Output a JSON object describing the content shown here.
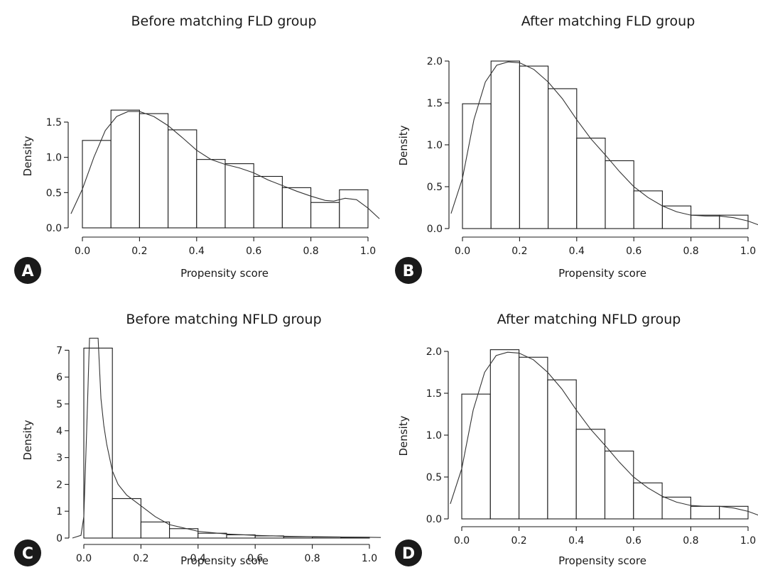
{
  "chart_data": [
    {
      "type": "bar",
      "panel_label": "A",
      "title": "Before matching FLD group",
      "xlabel": "Propensity score",
      "ylabel": "Density",
      "bin_edges": [
        0,
        0.1,
        0.2,
        0.3,
        0.4,
        0.5,
        0.6,
        0.7,
        0.8,
        0.9,
        1.0
      ],
      "values": [
        1.24,
        1.67,
        1.62,
        1.39,
        0.97,
        0.91,
        0.73,
        0.57,
        0.36,
        0.54
      ],
      "density_curve": {
        "x": [
          -0.04,
          0.0,
          0.04,
          0.08,
          0.12,
          0.16,
          0.2,
          0.25,
          0.3,
          0.35,
          0.4,
          0.45,
          0.5,
          0.55,
          0.6,
          0.65,
          0.7,
          0.75,
          0.8,
          0.85,
          0.88,
          0.92,
          0.96,
          1.0,
          1.04
        ],
        "y": [
          0.2,
          0.55,
          1.0,
          1.38,
          1.58,
          1.65,
          1.65,
          1.58,
          1.45,
          1.28,
          1.1,
          0.97,
          0.9,
          0.85,
          0.78,
          0.68,
          0.6,
          0.52,
          0.45,
          0.39,
          0.38,
          0.42,
          0.4,
          0.28,
          0.13
        ]
      },
      "xlim": [
        -0.04,
        1.04
      ],
      "ylim": [
        0,
        1.8
      ],
      "xticks": [
        0,
        0.2,
        0.4,
        0.6,
        0.8,
        1.0
      ],
      "xtick_labels": [
        "0.0",
        "0.2",
        "0.4",
        "0.6",
        "0.8",
        "1.0"
      ],
      "yticks": [
        0,
        0.5,
        1.0,
        1.5
      ],
      "ytick_labels": [
        "0.0",
        "0.5",
        "1.0",
        "1.5"
      ]
    },
    {
      "type": "bar",
      "panel_label": "B",
      "title": "After matching FLD group",
      "xlabel": "Propensity score",
      "ylabel": "Density",
      "bin_edges": [
        0,
        0.1,
        0.2,
        0.3,
        0.4,
        0.5,
        0.6,
        0.7,
        0.8,
        0.9,
        1.0
      ],
      "values": [
        1.49,
        2.0,
        1.94,
        1.67,
        1.08,
        0.81,
        0.45,
        0.27,
        0.16,
        0.16
      ],
      "density_curve": {
        "x": [
          -0.04,
          0.0,
          0.04,
          0.08,
          0.12,
          0.16,
          0.2,
          0.25,
          0.3,
          0.35,
          0.4,
          0.45,
          0.5,
          0.55,
          0.6,
          0.65,
          0.7,
          0.75,
          0.8,
          0.85,
          0.9,
          0.95,
          1.0,
          1.04
        ],
        "y": [
          0.18,
          0.6,
          1.3,
          1.75,
          1.95,
          1.99,
          1.98,
          1.9,
          1.75,
          1.55,
          1.3,
          1.07,
          0.88,
          0.68,
          0.5,
          0.37,
          0.27,
          0.2,
          0.16,
          0.15,
          0.15,
          0.13,
          0.09,
          0.04
        ]
      },
      "xlim": [
        -0.04,
        1.04
      ],
      "ylim": [
        0,
        2.15
      ],
      "xticks": [
        0,
        0.2,
        0.4,
        0.6,
        0.8,
        1.0
      ],
      "xtick_labels": [
        "0.0",
        "0.2",
        "0.4",
        "0.6",
        "0.8",
        "1.0"
      ],
      "yticks": [
        0,
        0.5,
        1.0,
        1.5,
        2.0
      ],
      "ytick_labels": [
        "0.0",
        "0.5",
        "1.0",
        "1.5",
        "2.0"
      ]
    },
    {
      "type": "bar",
      "panel_label": "C",
      "title": "Before matching NFLD group",
      "xlabel": "Propensity score",
      "ylabel": "Density",
      "bin_edges": [
        0,
        0.1,
        0.2,
        0.3,
        0.4,
        0.5,
        0.6,
        0.7,
        0.8,
        0.9,
        1.0
      ],
      "values": [
        7.08,
        1.47,
        0.6,
        0.35,
        0.18,
        0.12,
        0.08,
        0.05,
        0.04,
        0.03
      ],
      "density_curve": {
        "x": [
          -0.04,
          -0.01,
          0.0,
          0.01,
          0.02,
          0.03,
          0.04,
          0.05,
          0.06,
          0.07,
          0.08,
          0.1,
          0.12,
          0.15,
          0.2,
          0.25,
          0.3,
          0.4,
          0.5,
          0.6,
          0.7,
          0.8,
          0.9,
          1.0,
          1.04
        ],
        "y": [
          0.0,
          0.1,
          0.8,
          4.0,
          7.45,
          7.45,
          7.45,
          7.45,
          5.2,
          4.2,
          3.5,
          2.5,
          2.0,
          1.6,
          1.2,
          0.8,
          0.5,
          0.25,
          0.15,
          0.1,
          0.07,
          0.05,
          0.04,
          0.03,
          0.02
        ]
      },
      "xlim": [
        -0.04,
        1.04
      ],
      "ylim": [
        0,
        7.45
      ],
      "xticks": [
        0,
        0.2,
        0.4,
        0.6,
        0.8,
        1.0
      ],
      "xtick_labels": [
        "0.0",
        "0.2",
        "0.4",
        "0.6",
        "0.8",
        "1.0"
      ],
      "yticks": [
        0,
        1,
        2,
        3,
        4,
        5,
        6,
        7
      ],
      "ytick_labels": [
        "0",
        "1",
        "2",
        "3",
        "4",
        "5",
        "6",
        "7"
      ]
    },
    {
      "type": "bar",
      "panel_label": "D",
      "title": "After matching NFLD group",
      "xlabel": "Propensity score",
      "ylabel": "Density",
      "bin_edges": [
        0,
        0.1,
        0.2,
        0.3,
        0.4,
        0.5,
        0.6,
        0.7,
        0.8,
        0.9,
        1.0
      ],
      "values": [
        1.49,
        2.02,
        1.93,
        1.66,
        1.07,
        0.81,
        0.43,
        0.26,
        0.15,
        0.15
      ],
      "density_curve": {
        "x": [
          -0.04,
          0.0,
          0.04,
          0.08,
          0.12,
          0.16,
          0.2,
          0.25,
          0.3,
          0.35,
          0.4,
          0.45,
          0.5,
          0.55,
          0.6,
          0.65,
          0.7,
          0.75,
          0.8,
          0.85,
          0.9,
          0.95,
          1.0,
          1.04
        ],
        "y": [
          0.18,
          0.6,
          1.3,
          1.75,
          1.95,
          1.99,
          1.98,
          1.9,
          1.75,
          1.55,
          1.3,
          1.07,
          0.88,
          0.68,
          0.5,
          0.37,
          0.27,
          0.2,
          0.16,
          0.15,
          0.15,
          0.13,
          0.09,
          0.04
        ]
      },
      "xlim": [
        -0.04,
        1.04
      ],
      "ylim": [
        0,
        2.15
      ],
      "xticks": [
        0,
        0.2,
        0.4,
        0.6,
        0.8,
        1.0
      ],
      "xtick_labels": [
        "0.0",
        "0.2",
        "0.4",
        "0.6",
        "0.8",
        "1.0"
      ],
      "yticks": [
        0,
        0.5,
        1.0,
        1.5,
        2.0
      ],
      "ytick_labels": [
        "0.0",
        "0.5",
        "1.0",
        "1.5",
        "2.0"
      ]
    }
  ]
}
